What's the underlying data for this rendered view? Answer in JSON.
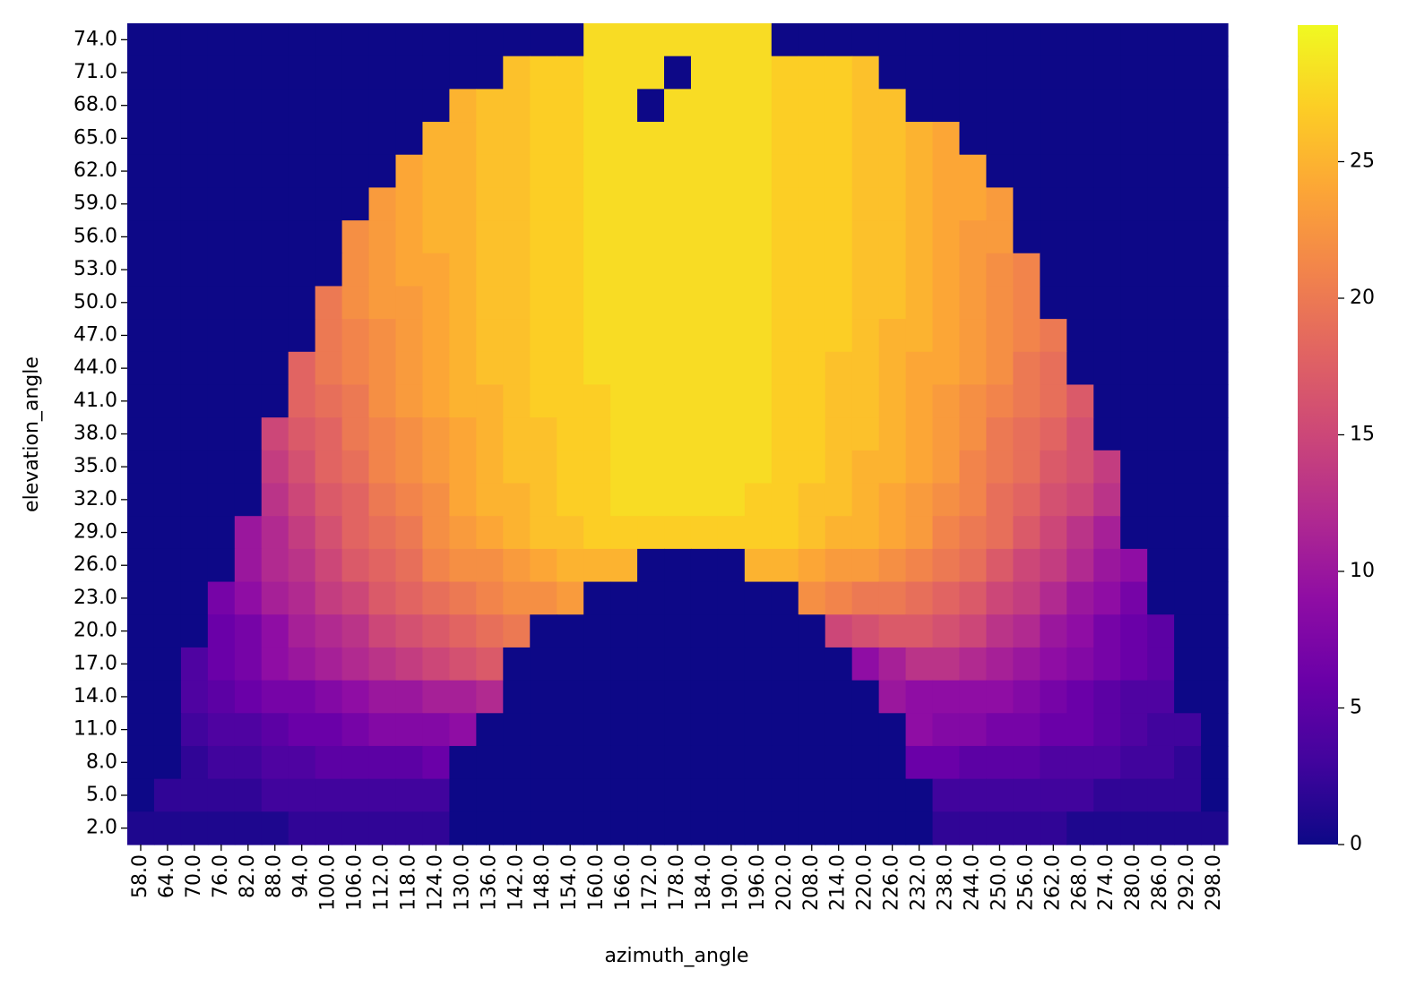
{
  "chart_data": {
    "type": "heatmap",
    "x_label": "azimuth_angle",
    "y_label": "elevation_angle",
    "colormap": "plasma",
    "zlim": [
      0,
      30
    ],
    "zticks": [
      0,
      5,
      10,
      15,
      20,
      25
    ],
    "x": [
      "58.0",
      "64.0",
      "70.0",
      "76.0",
      "82.0",
      "88.0",
      "94.0",
      "100.0",
      "106.0",
      "112.0",
      "118.0",
      "124.0",
      "130.0",
      "136.0",
      "142.0",
      "148.0",
      "154.0",
      "160.0",
      "166.0",
      "172.0",
      "178.0",
      "184.0",
      "190.0",
      "196.0",
      "202.0",
      "208.0",
      "214.0",
      "220.0",
      "226.0",
      "232.0",
      "238.0",
      "244.0",
      "250.0",
      "256.0",
      "262.0",
      "268.0",
      "274.0",
      "280.0",
      "286.0",
      "292.0",
      "298.0"
    ],
    "y": [
      "74.0",
      "71.0",
      "68.0",
      "65.0",
      "62.0",
      "59.0",
      "56.0",
      "53.0",
      "50.0",
      "47.0",
      "44.0",
      "41.0",
      "38.0",
      "35.0",
      "32.0",
      "29.0",
      "26.0",
      "23.0",
      "20.0",
      "17.0",
      "14.0",
      "11.0",
      "8.0",
      "5.0",
      "2.0"
    ],
    "values": [
      [
        0,
        0,
        0,
        0,
        0,
        0,
        0,
        0,
        0,
        0,
        0,
        0,
        0,
        0,
        0,
        0,
        0,
        28,
        28,
        28,
        28,
        28,
        28,
        28,
        0,
        0,
        0,
        0,
        0,
        0,
        0,
        0,
        0,
        0,
        0,
        0,
        0,
        0,
        0,
        0,
        0
      ],
      [
        0,
        0,
        0,
        0,
        0,
        0,
        0,
        0,
        0,
        0,
        0,
        0,
        0,
        0,
        26,
        27,
        27,
        28,
        28,
        28,
        0,
        28,
        28,
        28,
        27,
        27,
        27,
        26,
        0,
        0,
        0,
        0,
        0,
        0,
        0,
        0,
        0,
        0,
        0,
        0,
        0
      ],
      [
        0,
        0,
        0,
        0,
        0,
        0,
        0,
        0,
        0,
        0,
        0,
        0,
        25,
        26,
        26,
        27,
        27,
        28,
        28,
        0,
        28,
        28,
        28,
        28,
        27,
        27,
        27,
        26,
        26,
        0,
        0,
        0,
        0,
        0,
        0,
        0,
        0,
        0,
        0,
        0,
        0
      ],
      [
        0,
        0,
        0,
        0,
        0,
        0,
        0,
        0,
        0,
        0,
        0,
        25,
        25,
        26,
        26,
        27,
        27,
        28,
        28,
        28,
        28,
        28,
        28,
        28,
        27,
        27,
        27,
        26,
        26,
        25,
        24,
        0,
        0,
        0,
        0,
        0,
        0,
        0,
        0,
        0,
        0
      ],
      [
        0,
        0,
        0,
        0,
        0,
        0,
        0,
        0,
        0,
        0,
        24,
        25,
        25,
        26,
        26,
        27,
        27,
        28,
        28,
        28,
        28,
        28,
        28,
        28,
        27,
        27,
        27,
        26,
        26,
        25,
        24,
        24,
        0,
        0,
        0,
        0,
        0,
        0,
        0,
        0,
        0
      ],
      [
        0,
        0,
        0,
        0,
        0,
        0,
        0,
        0,
        0,
        23,
        24,
        25,
        25,
        26,
        26,
        27,
        27,
        28,
        28,
        28,
        28,
        28,
        28,
        28,
        27,
        27,
        27,
        26,
        26,
        25,
        24,
        24,
        23,
        0,
        0,
        0,
        0,
        0,
        0,
        0,
        0
      ],
      [
        0,
        0,
        0,
        0,
        0,
        0,
        0,
        0,
        22,
        23,
        24,
        25,
        25,
        26,
        26,
        27,
        27,
        28,
        28,
        28,
        28,
        28,
        28,
        28,
        27,
        27,
        27,
        26,
        26,
        25,
        24,
        23,
        23,
        0,
        0,
        0,
        0,
        0,
        0,
        0,
        0
      ],
      [
        0,
        0,
        0,
        0,
        0,
        0,
        0,
        0,
        22,
        23,
        24,
        24,
        25,
        26,
        26,
        27,
        27,
        28,
        28,
        28,
        28,
        28,
        28,
        28,
        27,
        27,
        27,
        26,
        26,
        25,
        24,
        23,
        22,
        21,
        0,
        0,
        0,
        0,
        0,
        0,
        0
      ],
      [
        0,
        0,
        0,
        0,
        0,
        0,
        0,
        20,
        22,
        23,
        23,
        24,
        25,
        26,
        26,
        27,
        27,
        28,
        28,
        28,
        28,
        28,
        28,
        28,
        27,
        27,
        27,
        26,
        26,
        25,
        24,
        23,
        22,
        21,
        0,
        0,
        0,
        0,
        0,
        0,
        0
      ],
      [
        0,
        0,
        0,
        0,
        0,
        0,
        0,
        20,
        21,
        22,
        23,
        24,
        25,
        26,
        26,
        27,
        27,
        28,
        28,
        28,
        28,
        28,
        28,
        28,
        27,
        27,
        27,
        26,
        25,
        25,
        24,
        23,
        22,
        21,
        20,
        0,
        0,
        0,
        0,
        0,
        0
      ],
      [
        0,
        0,
        0,
        0,
        0,
        0,
        18,
        20,
        21,
        22,
        23,
        24,
        25,
        26,
        26,
        27,
        27,
        28,
        28,
        28,
        28,
        28,
        28,
        28,
        27,
        27,
        26,
        26,
        25,
        24,
        24,
        23,
        22,
        20,
        19,
        0,
        0,
        0,
        0,
        0,
        0
      ],
      [
        0,
        0,
        0,
        0,
        0,
        0,
        18,
        19,
        20,
        22,
        23,
        24,
        25,
        25,
        26,
        27,
        27,
        27,
        28,
        28,
        28,
        28,
        28,
        28,
        27,
        27,
        26,
        26,
        25,
        24,
        23,
        22,
        21,
        20,
        19,
        17,
        0,
        0,
        0,
        0,
        0
      ],
      [
        0,
        0,
        0,
        0,
        0,
        15,
        17,
        18,
        20,
        21,
        22,
        23,
        24,
        25,
        26,
        26,
        27,
        27,
        28,
        28,
        28,
        28,
        28,
        28,
        27,
        27,
        26,
        26,
        25,
        24,
        23,
        22,
        20,
        19,
        18,
        16,
        0,
        0,
        0,
        0,
        0
      ],
      [
        0,
        0,
        0,
        0,
        0,
        14,
        16,
        18,
        19,
        21,
        22,
        23,
        24,
        25,
        26,
        26,
        27,
        27,
        28,
        28,
        28,
        28,
        28,
        28,
        27,
        27,
        26,
        25,
        25,
        24,
        23,
        21,
        20,
        19,
        17,
        16,
        14,
        0,
        0,
        0,
        0
      ],
      [
        0,
        0,
        0,
        0,
        0,
        13,
        15,
        17,
        18,
        20,
        21,
        22,
        24,
        25,
        25,
        26,
        27,
        27,
        28,
        28,
        28,
        28,
        28,
        27,
        27,
        26,
        26,
        25,
        24,
        23,
        22,
        21,
        19,
        18,
        16,
        15,
        13,
        0,
        0,
        0,
        0
      ],
      [
        0,
        0,
        0,
        0,
        10,
        12,
        14,
        16,
        18,
        19,
        20,
        22,
        23,
        24,
        25,
        26,
        26,
        27,
        27,
        27,
        27,
        27,
        27,
        27,
        27,
        26,
        25,
        25,
        24,
        23,
        21,
        20,
        19,
        17,
        15,
        13,
        11,
        0,
        0,
        0,
        0
      ],
      [
        0,
        0,
        0,
        0,
        10,
        12,
        13,
        15,
        17,
        18,
        19,
        21,
        22,
        22,
        23,
        24,
        25,
        25,
        25,
        0,
        0,
        0,
        0,
        25,
        25,
        24,
        23,
        23,
        22,
        21,
        20,
        19,
        17,
        15,
        14,
        12,
        10,
        9,
        0,
        0,
        0
      ],
      [
        0,
        0,
        0,
        7,
        9,
        11,
        12,
        14,
        15,
        17,
        18,
        19,
        20,
        21,
        22,
        22,
        23,
        0,
        0,
        0,
        0,
        0,
        0,
        0,
        0,
        22,
        21,
        20,
        20,
        19,
        18,
        17,
        15,
        14,
        12,
        10,
        9,
        7,
        0,
        0,
        0
      ],
      [
        0,
        0,
        0,
        6,
        7,
        9,
        11,
        12,
        13,
        15,
        16,
        17,
        18,
        19,
        20,
        0,
        0,
        0,
        0,
        0,
        0,
        0,
        0,
        0,
        0,
        0,
        15,
        16,
        17,
        17,
        16,
        15,
        13,
        12,
        10,
        9,
        7,
        6,
        5,
        0,
        0
      ],
      [
        0,
        0,
        4,
        6,
        7,
        9,
        10,
        11,
        12,
        13,
        14,
        15,
        16,
        17,
        0,
        0,
        0,
        0,
        0,
        0,
        0,
        0,
        0,
        0,
        0,
        0,
        0,
        9,
        11,
        13,
        13,
        12,
        11,
        10,
        9,
        8,
        7,
        6,
        5,
        0,
        0
      ],
      [
        0,
        0,
        4,
        5,
        6,
        7,
        7,
        8,
        9,
        10,
        10,
        11,
        11,
        12,
        0,
        0,
        0,
        0,
        0,
        0,
        0,
        0,
        0,
        0,
        0,
        0,
        0,
        0,
        10,
        9,
        9,
        9,
        9,
        8,
        7,
        6,
        5,
        4,
        4,
        0,
        0
      ],
      [
        0,
        0,
        3,
        4,
        4,
        5,
        6,
        6,
        7,
        8,
        8,
        8,
        9,
        0,
        0,
        0,
        0,
        0,
        0,
        0,
        0,
        0,
        0,
        0,
        0,
        0,
        0,
        0,
        0,
        9,
        8,
        8,
        7,
        7,
        6,
        6,
        5,
        4,
        3,
        3,
        0
      ],
      [
        0,
        0,
        2,
        3,
        3,
        4,
        4,
        5,
        5,
        5,
        5,
        6,
        0,
        0,
        0,
        0,
        0,
        0,
        0,
        0,
        0,
        0,
        0,
        0,
        0,
        0,
        0,
        0,
        0,
        6,
        6,
        5,
        5,
        5,
        4,
        4,
        4,
        3,
        3,
        2,
        0
      ],
      [
        0,
        2,
        2,
        2,
        2,
        3,
        3,
        3,
        3,
        3,
        3,
        3,
        0,
        0,
        0,
        0,
        0,
        0,
        0,
        0,
        0,
        0,
        0,
        0,
        0,
        0,
        0,
        0,
        0,
        0,
        3,
        3,
        3,
        3,
        3,
        3,
        2,
        2,
        2,
        2,
        0
      ],
      [
        1,
        1,
        1,
        1,
        1,
        1,
        2,
        2,
        2,
        2,
        2,
        2,
        0,
        0,
        0,
        0,
        0,
        0,
        0,
        0,
        0,
        0,
        0,
        0,
        0,
        0,
        0,
        0,
        0,
        0,
        2,
        2,
        2,
        2,
        2,
        1,
        1,
        1,
        1,
        1,
        1
      ]
    ]
  }
}
